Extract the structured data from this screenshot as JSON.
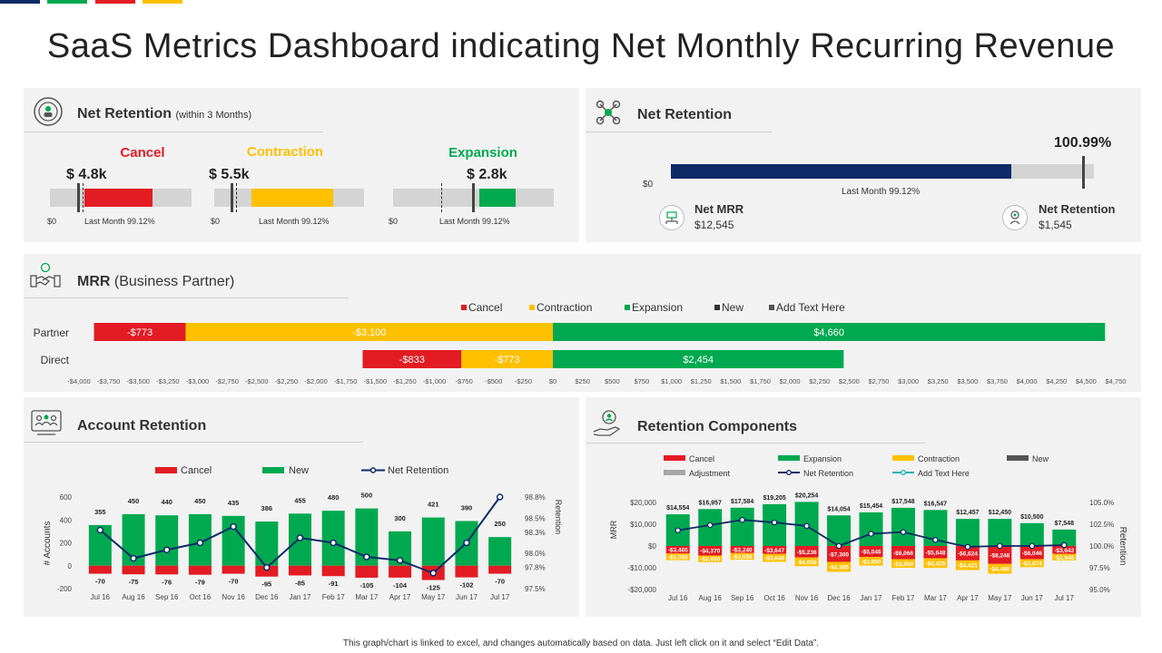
{
  "colors": {
    "navy": "#0d2a66",
    "green": "#00a94f",
    "red": "#e31b23",
    "yellow": "#ffc000",
    "gray": "#d4d4d4",
    "dark": "#555555",
    "teal": "#17b3b3",
    "lightgray": "#a6a6a6"
  },
  "page": {
    "title": "SaaS Metrics Dashboard indicating Net Monthly Recurring Revenue",
    "footer": "This graph/chart is linked to excel, and changes automatically based on data. Just left click on it and select “Edit Data”."
  },
  "net_retention_left": {
    "title": "Net Retention",
    "subtitle": "(within 3 Months)",
    "gauges": [
      {
        "label": "Cancel",
        "value_label": "$ 4.8k",
        "zero": "$0",
        "last_month": "Last Month  99.12%",
        "color": "#e31b23"
      },
      {
        "label": "Contraction",
        "value_label": "$ 5.5k",
        "zero": "$0",
        "last_month": "Last Month  99.12%",
        "color": "#ffc000"
      },
      {
        "label": "Expansion",
        "value_label": "$ 2.8k",
        "zero": "$0",
        "last_month": "Last Month  99.12%",
        "color": "#00a94f"
      }
    ]
  },
  "net_retention_right": {
    "title": "Net Retention",
    "value_label": "100.99%",
    "value": 100.99,
    "zero": "$0",
    "last_month": "Last Month  99.12%",
    "kpis": [
      {
        "name": "Net MRR",
        "value": "$12,545"
      },
      {
        "name": "Net Retention",
        "value": "$1,545"
      }
    ]
  },
  "mrr_partner": {
    "title_bold": "MRR",
    "title_rest": "(Business Partner)"
  },
  "account_retention": {
    "title": "Account Retention"
  },
  "retention_components": {
    "title": "Retention Components"
  },
  "chart_data": [
    {
      "id": "mrr",
      "type": "bar",
      "orientation": "horizontal",
      "stacked": true,
      "categories": [
        "Partner",
        "Direct"
      ],
      "legend": [
        "Cancel",
        "Contraction",
        "Expansion",
        "New",
        "Add Text Here"
      ],
      "series": [
        {
          "name": "Contraction",
          "values": [
            -3100,
            -773
          ],
          "labels": [
            "-$3,100",
            "-$773"
          ],
          "color": "#ffc000"
        },
        {
          "name": "Cancel",
          "values": [
            -773,
            -833
          ],
          "labels": [
            "-$773",
            "-$833"
          ],
          "color": "#e31b23"
        },
        {
          "name": "Expansion",
          "values": [
            4660,
            2454
          ],
          "labels": [
            "$4,660",
            "$2,454"
          ],
          "color": "#00a94f"
        }
      ],
      "xlim": [
        -4000,
        4750
      ],
      "xticks": [
        -4000,
        -3750,
        -3500,
        -3250,
        -3000,
        -2750,
        -2500,
        -2250,
        -2000,
        -1750,
        -1500,
        -1250,
        -1000,
        -750,
        -500,
        -250,
        0,
        250,
        500,
        750,
        1000,
        1250,
        1500,
        1750,
        2000,
        2250,
        2500,
        2750,
        3000,
        3250,
        3500,
        3750,
        4000,
        4250,
        4500,
        4750
      ],
      "xtick_labels": [
        "-$4,000",
        "-$3,750",
        "-$3,500",
        "-$3,250",
        "-$3,000",
        "-$2,750",
        "-$2,500",
        "-$2,250",
        "-$2,000",
        "-$1,750",
        "-$1,500",
        "-$1,250",
        "-$1,000",
        "-$750",
        "-$500",
        "-$250",
        "$0",
        "$250",
        "$500",
        "$750",
        "$1,000",
        "$1,250",
        "$1,500",
        "$1,750",
        "$2,000",
        "$2,250",
        "$2,500",
        "$2,750",
        "$3,000",
        "$3,250",
        "$3,500",
        "$3,750",
        "$4,000",
        "$4,250",
        "$4,500",
        "$4,750"
      ]
    },
    {
      "id": "account",
      "type": "bar",
      "categories": [
        "Jul 16",
        "Aug 16",
        "Sep 16",
        "Oct 16",
        "Nov 16",
        "Dec 16",
        "Jan 17",
        "Feb 17",
        "Mar 17",
        "Apr 17",
        "May 17",
        "Jun 17",
        "Jul 17"
      ],
      "legend": [
        "Cancel",
        "New",
        "Net Retention"
      ],
      "series": [
        {
          "name": "New",
          "values": [
            355,
            450,
            440,
            450,
            435,
            386,
            455,
            480,
            500,
            300,
            421,
            390,
            250
          ],
          "color": "#00a94f"
        },
        {
          "name": "Cancel",
          "values": [
            -70,
            -75,
            -76,
            -79,
            -70,
            -95,
            -85,
            -91,
            -105,
            -104,
            -125,
            -102,
            -70
          ],
          "color": "#e31b23"
        },
        {
          "name": "Net Retention",
          "type": "line",
          "axis": "right",
          "values": [
            98.33,
            97.93,
            98.05,
            98.15,
            98.38,
            97.8,
            98.22,
            98.15,
            97.95,
            97.9,
            97.72,
            98.15,
            98.8
          ],
          "color": "#0d2a66"
        }
      ],
      "ylabel": "# Accounts",
      "ylim": [
        -200,
        600
      ],
      "yticks": [
        -200,
        0,
        200,
        400,
        600
      ],
      "y2label": "Retention",
      "y2lim": [
        97.5,
        98.8
      ],
      "y2ticks": [
        97.5,
        97.8,
        98.0,
        98.3,
        98.5,
        98.8
      ],
      "y2tick_labels": [
        "97.5%",
        "97.8%",
        "98.0%",
        "98.3%",
        "98.5%",
        "98.8%"
      ]
    },
    {
      "id": "components",
      "type": "bar",
      "stacked": true,
      "categories": [
        "Jul 16",
        "Aug 16",
        "Sep 16",
        "Oct 16",
        "Nov 16",
        "Dec 16",
        "Jan 17",
        "Feb 17",
        "Mar 17",
        "Apr 17",
        "May 17",
        "Jun 17",
        "Jul 17"
      ],
      "legend": [
        "Cancel",
        "Expansion",
        "Contraction",
        "New",
        "Adjustment",
        "Net Retention",
        "Add Text Here"
      ],
      "series": [
        {
          "name": "Expansion",
          "values": [
            14554,
            16957,
            17584,
            19205,
            20254,
            14054,
            15454,
            17548,
            16547,
            12457,
            12450,
            10500,
            7548
          ],
          "labels": [
            "$14,554",
            "$16,957",
            "$17,584",
            "$19,205",
            "$20,254",
            "$14,054",
            "$15,454",
            "$17,548",
            "$16,547",
            "$12,457",
            "$12,450",
            "$10,500",
            "$7,548"
          ],
          "color": "#00a94f"
        },
        {
          "name": "Cancel",
          "values": [
            -3465,
            -4370,
            -3240,
            -3647,
            -5236,
            -7300,
            -5046,
            -6066,
            -5648,
            -6624,
            -8246,
            -6046,
            -3642
          ],
          "labels": [
            "-$3,465",
            "-$4,370",
            "-$3,240",
            "-$3,647",
            "-$5,236",
            "-$7,300",
            "-$5,046",
            "-$6,066",
            "-$5,648",
            "-$6,624",
            "-$8,246",
            "-$6,046",
            "-$3,642"
          ],
          "color": "#e31b23"
        },
        {
          "name": "Contraction",
          "values": [
            -3050,
            -3050,
            -3050,
            -3646,
            -4050,
            -4585,
            -3950,
            -3950,
            -4425,
            -4421,
            -4480,
            -3674,
            -2946
          ],
          "labels": [
            "-$3,050",
            "-$3,050",
            "-$3,050",
            "-$3,646",
            "-$4,050",
            "-$4,585",
            "-$3,950",
            "-$3,950",
            "-$4,425",
            "-$4,421",
            "-$4,480",
            "-$3,674",
            "-$2,946"
          ],
          "color": "#ffc000"
        },
        {
          "name": "Net Retention",
          "type": "line",
          "axis": "right",
          "values": [
            101.8,
            102.4,
            103.0,
            102.7,
            102.3,
            100.0,
            101.4,
            101.6,
            100.7,
            99.9,
            100.0,
            100.0,
            100.1
          ],
          "color": "#0d2a66"
        }
      ],
      "ylabel": "MRR",
      "ylim": [
        -20000,
        20000
      ],
      "yticks": [
        -20000,
        -10000,
        0,
        10000,
        20000
      ],
      "ytick_labels": [
        "-$20,000",
        "-$10,000",
        "$0",
        "$10,000",
        "$20,000"
      ],
      "y2label": "Retention",
      "y2lim": [
        95.0,
        105.0
      ],
      "y2ticks": [
        95.0,
        97.5,
        100.0,
        102.5,
        105.0
      ],
      "y2tick_labels": [
        "95.0%",
        "97.5%",
        "100.0%",
        "102.5%",
        "105.0%"
      ]
    }
  ]
}
